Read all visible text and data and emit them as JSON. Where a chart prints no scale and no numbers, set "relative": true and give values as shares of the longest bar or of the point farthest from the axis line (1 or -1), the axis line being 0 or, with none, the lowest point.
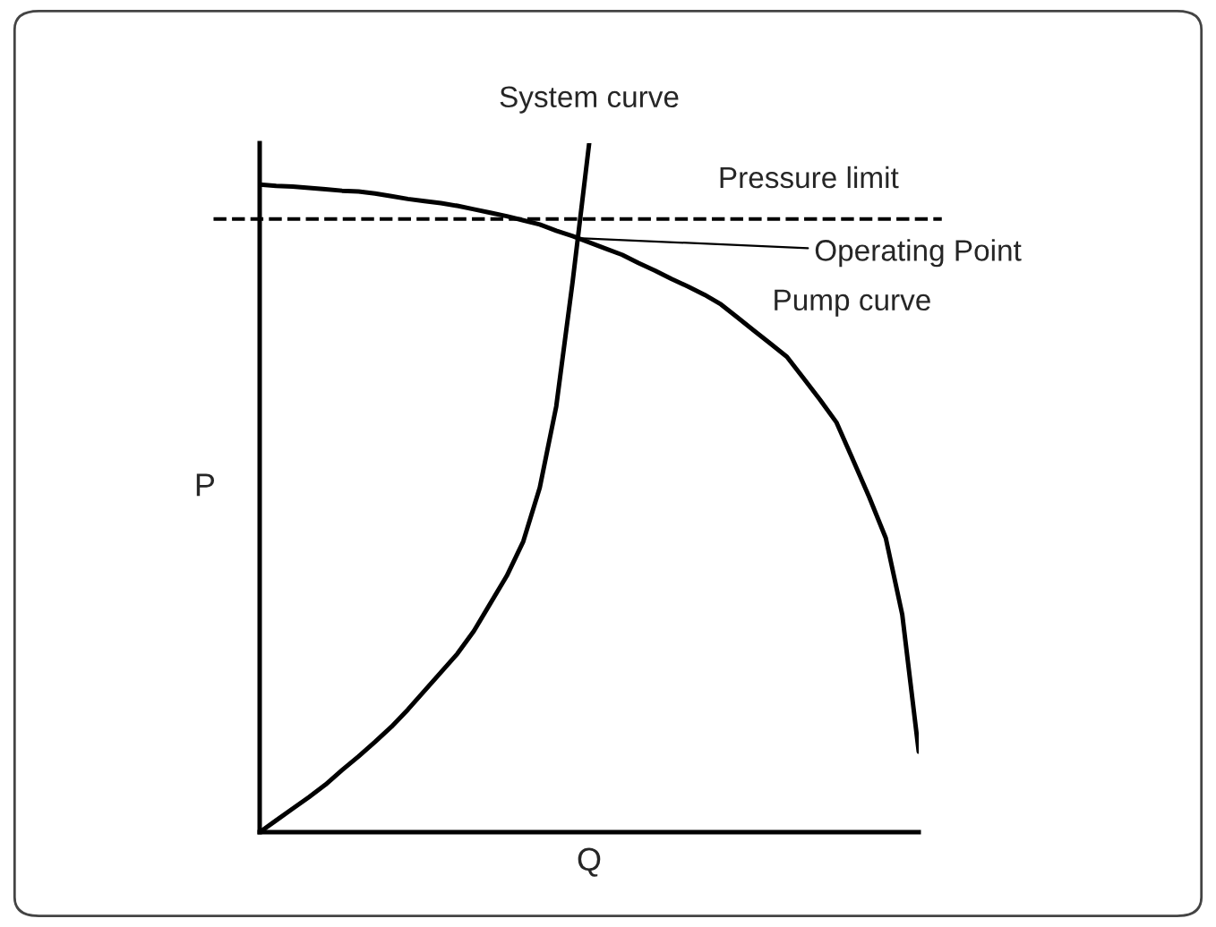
{
  "chart_data": {
    "type": "line",
    "relative": true,
    "xlabel": "Q",
    "ylabel": "P",
    "categories": [
      null,
      null,
      null,
      null,
      null,
      null,
      null,
      null,
      null,
      null,
      null,
      null,
      null,
      null,
      null,
      null,
      null,
      null,
      null,
      null,
      null,
      null,
      null,
      null,
      null,
      null,
      null,
      null,
      null,
      null,
      null,
      null,
      null,
      null,
      null,
      null,
      null,
      null,
      null,
      null,
      null
    ],
    "series": [
      {
        "name": "System curve",
        "color": "#000000",
        "values": [
          0,
          0.017,
          0.034,
          0.051,
          0.069,
          0.09,
          0.11,
          0.131,
          0.153,
          0.178,
          0.205,
          0.232,
          0.259,
          0.292,
          0.332,
          0.372,
          0.422,
          0.5,
          0.618,
          0.8,
          1.0,
          null,
          null,
          null,
          null,
          null,
          null,
          null,
          null,
          null,
          null,
          null,
          null,
          null,
          null,
          null,
          null,
          null,
          null,
          null,
          null
        ]
      },
      {
        "name": "Pump curve",
        "color": "#000000",
        "values": [
          0.94,
          0.938,
          0.937,
          0.935,
          0.933,
          0.931,
          0.93,
          0.927,
          0.923,
          0.919,
          0.916,
          0.913,
          0.909,
          0.904,
          0.899,
          0.894,
          0.888,
          0.882,
          0.873,
          0.865,
          0.856,
          0.847,
          0.838,
          0.826,
          0.815,
          0.803,
          0.792,
          0.78,
          0.766,
          0.747,
          0.728,
          0.709,
          0.69,
          0.659,
          0.628,
          0.595,
          0.541,
          0.486,
          0.427,
          0.316,
          0.117
        ]
      }
    ],
    "ref_lines": [
      {
        "axis": "y",
        "value": 0.89,
        "label": "Pressure limit",
        "color": "#000000",
        "line_style": "dashed"
      }
    ],
    "annotations": [
      "Operating Point"
    ]
  }
}
